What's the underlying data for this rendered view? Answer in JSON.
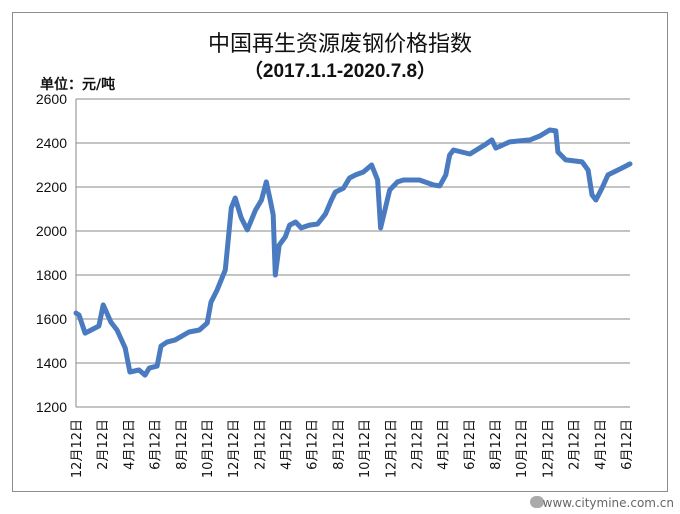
{
  "chart_data": {
    "type": "line",
    "title": "中国再生资源废钢价格指数",
    "subtitle": "（2017.1.1-2020.7.8）",
    "ylabel": "单位：元/吨",
    "ylim": [
      1200,
      2600
    ],
    "yticks": [
      1200,
      1400,
      1600,
      1800,
      2000,
      2200,
      2400,
      2600
    ],
    "xlim": [
      "2017-01-01",
      "2020-07-08"
    ],
    "xtick_labels": [
      "12月12日",
      "2月12日",
      "4月12日",
      "6月12日",
      "8月12日",
      "10月12日",
      "12月12日",
      "2月12日",
      "4月12日",
      "6月12日",
      "8月12日",
      "10月12日",
      "12月12日",
      "2月12日",
      "4月12日",
      "6月12日",
      "8月12日",
      "10月12日",
      "12月12日",
      "2月12日",
      "4月12日",
      "6月12日"
    ],
    "grid": true,
    "line_color": "#4a7bc0",
    "points": [
      [
        "2017-01-01",
        1627
      ],
      [
        "2017-01-08",
        1618
      ],
      [
        "2017-01-22",
        1536
      ],
      [
        "2017-02-23",
        1568
      ],
      [
        "2017-03-05",
        1664
      ],
      [
        "2017-03-23",
        1586
      ],
      [
        "2017-04-06",
        1550
      ],
      [
        "2017-04-25",
        1468
      ],
      [
        "2017-05-06",
        1359
      ],
      [
        "2017-05-27",
        1368
      ],
      [
        "2017-06-10",
        1345
      ],
      [
        "2017-06-20",
        1377
      ],
      [
        "2017-07-08",
        1386
      ],
      [
        "2017-07-17",
        1477
      ],
      [
        "2017-07-31",
        1495
      ],
      [
        "2017-08-19",
        1505
      ],
      [
        "2017-09-20",
        1541
      ],
      [
        "2017-10-14",
        1550
      ],
      [
        "2017-11-01",
        1582
      ],
      [
        "2017-11-10",
        1677
      ],
      [
        "2017-11-24",
        1732
      ],
      [
        "2017-12-13",
        1823
      ],
      [
        "2017-12-27",
        2105
      ],
      [
        "2018-01-05",
        2150
      ],
      [
        "2018-01-19",
        2059
      ],
      [
        "2018-02-02",
        2005
      ],
      [
        "2018-02-21",
        2095
      ],
      [
        "2018-03-07",
        2141
      ],
      [
        "2018-03-18",
        2223
      ],
      [
        "2018-03-27",
        2141
      ],
      [
        "2018-04-03",
        2073
      ],
      [
        "2018-04-08",
        1800
      ],
      [
        "2018-04-17",
        1936
      ],
      [
        "2018-05-01",
        1973
      ],
      [
        "2018-05-11",
        2027
      ],
      [
        "2018-05-25",
        2041
      ],
      [
        "2018-06-07",
        2014
      ],
      [
        "2018-06-26",
        2027
      ],
      [
        "2018-07-15",
        2032
      ],
      [
        "2018-08-02",
        2077
      ],
      [
        "2018-08-16",
        2141
      ],
      [
        "2018-08-25",
        2177
      ],
      [
        "2018-09-13",
        2195
      ],
      [
        "2018-09-27",
        2241
      ],
      [
        "2018-10-11",
        2255
      ],
      [
        "2018-10-29",
        2268
      ],
      [
        "2018-11-17",
        2300
      ],
      [
        "2018-12-01",
        2232
      ],
      [
        "2018-12-08",
        2014
      ],
      [
        "2018-12-19",
        2105
      ],
      [
        "2018-12-29",
        2186
      ],
      [
        "2019-01-16",
        2223
      ],
      [
        "2019-01-30",
        2232
      ],
      [
        "2019-03-08",
        2232
      ],
      [
        "2019-04-10",
        2209
      ],
      [
        "2019-04-24",
        2205
      ],
      [
        "2019-05-08",
        2255
      ],
      [
        "2019-05-17",
        2345
      ],
      [
        "2019-05-26",
        2368
      ],
      [
        "2019-07-03",
        2350
      ],
      [
        "2019-08-09",
        2395
      ],
      [
        "2019-08-23",
        2414
      ],
      [
        "2019-09-01",
        2377
      ],
      [
        "2019-10-03",
        2405
      ],
      [
        "2019-11-19",
        2414
      ],
      [
        "2019-12-12",
        2432
      ],
      [
        "2020-01-04",
        2459
      ],
      [
        "2020-01-18",
        2455
      ],
      [
        "2020-01-23",
        2359
      ],
      [
        "2020-02-10",
        2323
      ],
      [
        "2020-03-19",
        2314
      ],
      [
        "2020-04-02",
        2277
      ],
      [
        "2020-04-11",
        2164
      ],
      [
        "2020-04-20",
        2141
      ],
      [
        "2020-05-04",
        2195
      ],
      [
        "2020-05-18",
        2255
      ],
      [
        "2020-06-19",
        2286
      ],
      [
        "2020-07-08",
        2305
      ]
    ]
  },
  "watermark": "www.citymine.com.cn"
}
